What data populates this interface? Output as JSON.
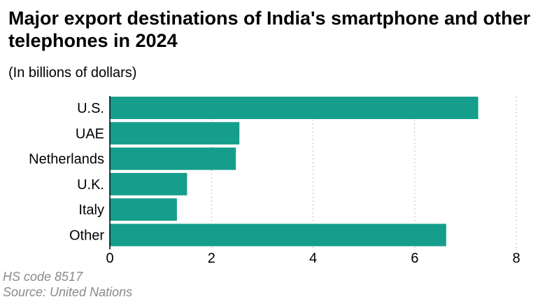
{
  "title": "Major export destinations of India's smartphone and other telephones in 2024",
  "subtitle": "(In billions of dollars)",
  "footnotes": {
    "hs_code": "HS code 8517",
    "source": "Source: United Nations"
  },
  "colors": {
    "bar": "#159e8c",
    "grid": "#b5b5b5",
    "axis": "#000000",
    "footnote": "#8a8a8a"
  },
  "chart_data": {
    "type": "bar",
    "orientation": "horizontal",
    "categories": [
      "U.S.",
      "UAE",
      "Netherlands",
      "U.K.",
      "Italy",
      "Other"
    ],
    "values": [
      7.25,
      2.55,
      2.48,
      1.52,
      1.32,
      6.62
    ],
    "xlim": [
      0,
      8
    ],
    "xticks": [
      "0",
      "2",
      "4",
      "6",
      "8"
    ],
    "grid": "vertical dotted",
    "legend": "none"
  }
}
